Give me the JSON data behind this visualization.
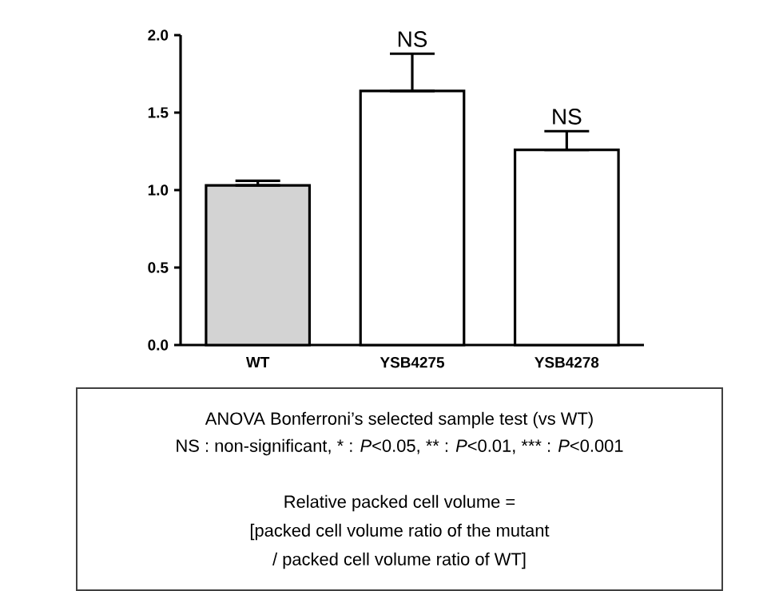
{
  "chart_data": {
    "type": "bar",
    "categories": [
      "WT",
      "YSB4275",
      "YSB4278"
    ],
    "values": [
      1.03,
      1.64,
      1.26
    ],
    "errors": [
      [
        1.03,
        1.06
      ],
      [
        1.64,
        1.88
      ],
      [
        1.26,
        1.38
      ]
    ],
    "colors": [
      "#d3d3d3",
      "#ffffff",
      "#ffffff"
    ],
    "ylim": [
      0,
      2.0
    ],
    "yticks": [
      {
        "value": 0,
        "label": "0.0"
      },
      {
        "value": 0.5,
        "label": "0.5"
      },
      {
        "value": 1.0,
        "label": "1.0"
      },
      {
        "value": 1.5,
        "label": "1.5"
      },
      {
        "value": 2.0,
        "label": "2.0"
      }
    ],
    "annotations": [
      {
        "text": "NS",
        "x": "YSB4275",
        "y": 1.88
      },
      {
        "text": "NS",
        "x": "YSB4278",
        "y": 1.38
      },
      "ANOVA Bonferroni’s selected sample test (vs WT)",
      "NS : non-significant, * : *P*<0.05, ** : *P*<0.01, *** : *P*<0.001",
      "Relative packed cell volume =",
      "[packed cell volume ratio of the mutant",
      "/ packed cell volume ratio of WT]"
    ]
  }
}
